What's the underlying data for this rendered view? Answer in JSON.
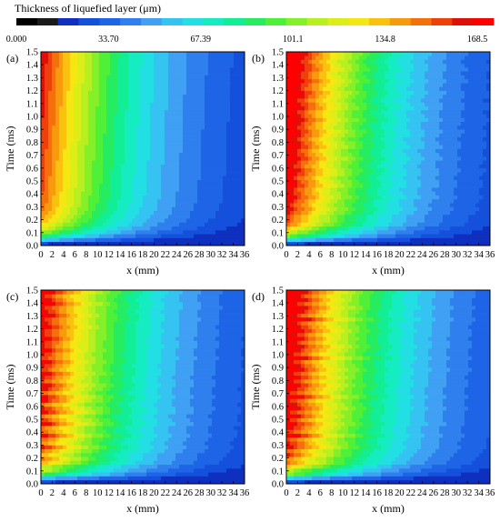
{
  "colorbar": {
    "title": "Thickness of liquefied layer  (μm)",
    "tick_labels": [
      "0.000",
      "33.70",
      "67.39",
      "101.1",
      "134.8",
      "168.5"
    ],
    "colors": [
      "#000000",
      "#1a1a1a",
      "#0f2fbf",
      "#1550dc",
      "#1e64e6",
      "#2f7fee",
      "#3fa0f4",
      "#35c3f2",
      "#22dfe4",
      "#15ecc1",
      "#12ee95",
      "#25ec61",
      "#4ef038",
      "#84f02a",
      "#b6f020",
      "#dcee18",
      "#f5e812",
      "#f9c20f",
      "#f79a0c",
      "#f4700a",
      "#ee4008",
      "#e01008",
      "#ff0000"
    ]
  },
  "axes": {
    "xlabel": "x (mm)",
    "ylabel": "Time (ms)",
    "x_ticks": [
      "0",
      "2",
      "4",
      "6",
      "8",
      "10",
      "12",
      "14",
      "16",
      "18",
      "20",
      "22",
      "24",
      "26",
      "28",
      "30",
      "32",
      "34",
      "36"
    ],
    "y_ticks": [
      "0.0",
      "0.1",
      "0.2",
      "0.3",
      "0.4",
      "0.5",
      "0.6",
      "0.7",
      "0.8",
      "0.9",
      "1.0",
      "1.1",
      "1.2",
      "1.3",
      "1.4",
      "1.5"
    ]
  },
  "chart_data": [
    {
      "type": "heatmap",
      "panel_label": "(a)",
      "xlabel": "x (mm)",
      "ylabel": "Time (ms)",
      "xlim": [
        0,
        36
      ],
      "ylim": [
        0,
        1.5
      ],
      "zlim": [
        0,
        168.5
      ],
      "zlabel": "Thickness of liquefied layer (μm)",
      "peak": 145,
      "x_decay": 0.55,
      "ripple_x": 0,
      "ripple_t": 0
    },
    {
      "type": "heatmap",
      "panel_label": "(b)",
      "xlabel": "x (mm)",
      "ylabel": "Time (ms)",
      "xlim": [
        0,
        36
      ],
      "ylim": [
        0,
        1.5
      ],
      "zlim": [
        0,
        168.5
      ],
      "zlabel": "Thickness of liquefied layer (μm)",
      "peak": 162,
      "x_decay": 0.55,
      "ripple_x": 0.55,
      "ripple_t": 0
    },
    {
      "type": "heatmap",
      "panel_label": "(c)",
      "xlabel": "x (mm)",
      "ylabel": "Time (ms)",
      "xlim": [
        0,
        36
      ],
      "ylim": [
        0,
        1.5
      ],
      "zlim": [
        0,
        168.5
      ],
      "zlabel": "Thickness of liquefied layer (μm)",
      "peak": 150,
      "x_decay": 0.58,
      "ripple_x": 0.4,
      "ripple_t": 16
    },
    {
      "type": "heatmap",
      "panel_label": "(d)",
      "xlabel": "x (mm)",
      "ylabel": "Time (ms)",
      "xlim": [
        0,
        36
      ],
      "ylim": [
        0,
        1.5
      ],
      "zlim": [
        0,
        168.5
      ],
      "zlabel": "Thickness of liquefied layer (μm)",
      "peak": 160,
      "x_decay": 0.58,
      "ripple_x": 0.4,
      "ripple_t": 20
    }
  ]
}
